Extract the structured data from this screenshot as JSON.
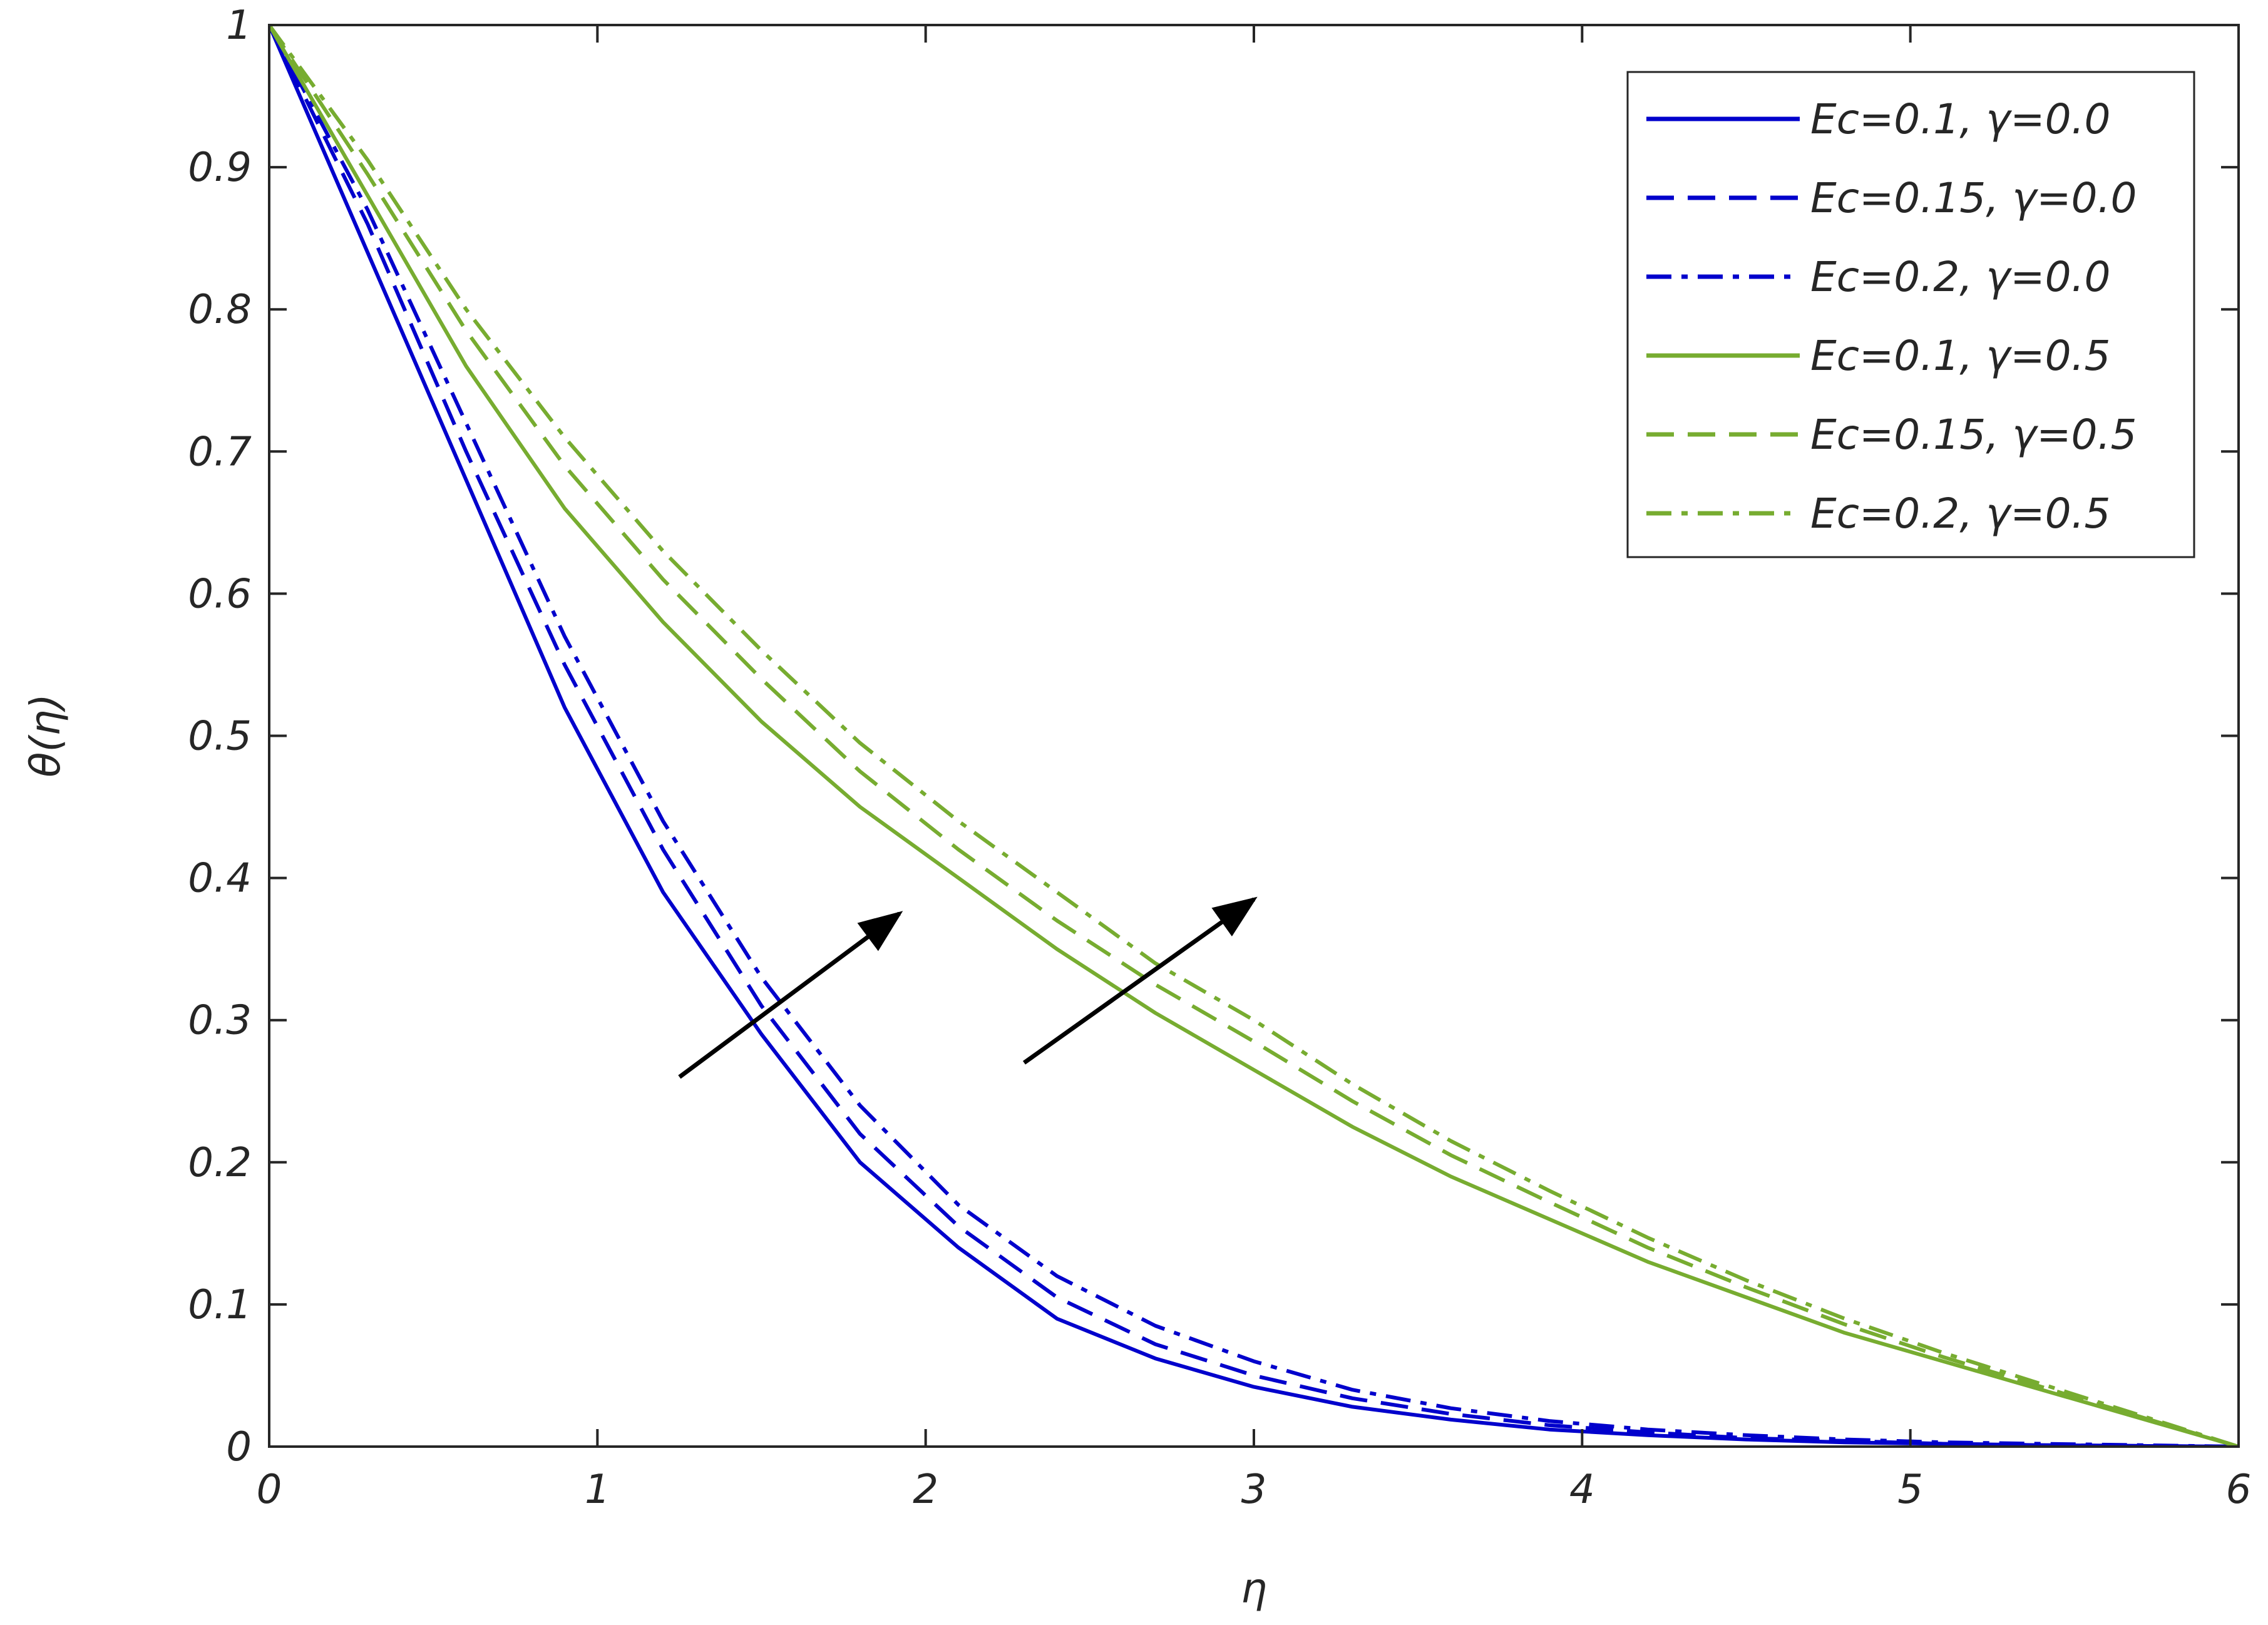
{
  "chart_data": {
    "type": "line",
    "title": "",
    "xlabel": "η",
    "ylabel": "θ(η)",
    "xlim": [
      0,
      6
    ],
    "ylim": [
      0,
      1
    ],
    "xticks": [
      "0",
      "1",
      "2",
      "3",
      "4",
      "5",
      "6"
    ],
    "yticks": [
      "0",
      "0.1",
      "0.2",
      "0.3",
      "0.4",
      "0.5",
      "0.6",
      "0.7",
      "0.8",
      "0.9",
      "1"
    ],
    "grid": false,
    "legend_position": "top-right",
    "x": [
      0,
      0.3,
      0.6,
      0.9,
      1.2,
      1.5,
      1.8,
      2.1,
      2.4,
      2.7,
      3.0,
      3.3,
      3.6,
      3.9,
      4.2,
      4.5,
      4.8,
      5.1,
      5.4,
      5.7,
      6.0
    ],
    "series": [
      {
        "name": "Ec=0.1, γ=0.0",
        "color": "#0000cc",
        "dash": "solid",
        "values": [
          1.0,
          0.84,
          0.68,
          0.52,
          0.39,
          0.29,
          0.2,
          0.14,
          0.09,
          0.062,
          0.042,
          0.028,
          0.019,
          0.012,
          0.008,
          0.005,
          0.003,
          0.002,
          0.001,
          0.0005,
          0.0
        ]
      },
      {
        "name": "Ec=0.15, γ=0.0",
        "color": "#0000cc",
        "dash": "dash",
        "values": [
          1.0,
          0.86,
          0.7,
          0.55,
          0.42,
          0.31,
          0.22,
          0.155,
          0.105,
          0.072,
          0.05,
          0.034,
          0.023,
          0.015,
          0.01,
          0.006,
          0.004,
          0.002,
          0.001,
          0.0005,
          0.0
        ]
      },
      {
        "name": "Ec=0.2, γ=0.0",
        "color": "#0000cc",
        "dash": "dashdot",
        "values": [
          1.0,
          0.87,
          0.72,
          0.57,
          0.44,
          0.33,
          0.24,
          0.17,
          0.12,
          0.085,
          0.06,
          0.04,
          0.027,
          0.018,
          0.012,
          0.008,
          0.005,
          0.003,
          0.002,
          0.001,
          0.0
        ]
      },
      {
        "name": "Ec=0.1, γ=0.5",
        "color": "#77ac30",
        "dash": "solid",
        "values": [
          1.0,
          0.88,
          0.76,
          0.66,
          0.58,
          0.51,
          0.45,
          0.4,
          0.35,
          0.305,
          0.265,
          0.225,
          0.19,
          0.16,
          0.13,
          0.105,
          0.08,
          0.06,
          0.04,
          0.02,
          0.0
        ]
      },
      {
        "name": "Ec=0.15, γ=0.5",
        "color": "#77ac30",
        "dash": "dash",
        "values": [
          1.0,
          0.895,
          0.785,
          0.69,
          0.61,
          0.54,
          0.475,
          0.42,
          0.37,
          0.325,
          0.285,
          0.243,
          0.205,
          0.172,
          0.14,
          0.112,
          0.086,
          0.063,
          0.042,
          0.021,
          0.0
        ]
      },
      {
        "name": "Ec=0.2, γ=0.5",
        "color": "#77ac30",
        "dash": "dashdot",
        "values": [
          1.0,
          0.905,
          0.8,
          0.71,
          0.63,
          0.56,
          0.495,
          0.44,
          0.39,
          0.34,
          0.3,
          0.255,
          0.215,
          0.18,
          0.147,
          0.117,
          0.09,
          0.066,
          0.044,
          0.022,
          0.0
        ]
      }
    ],
    "annotations": [
      {
        "type": "arrow",
        "from": [
          1.25,
          0.26
        ],
        "to": [
          1.92,
          0.375
        ],
        "color": "#000000"
      },
      {
        "type": "arrow",
        "from": [
          2.3,
          0.27
        ],
        "to": [
          3.0,
          0.385
        ],
        "color": "#000000"
      }
    ]
  }
}
